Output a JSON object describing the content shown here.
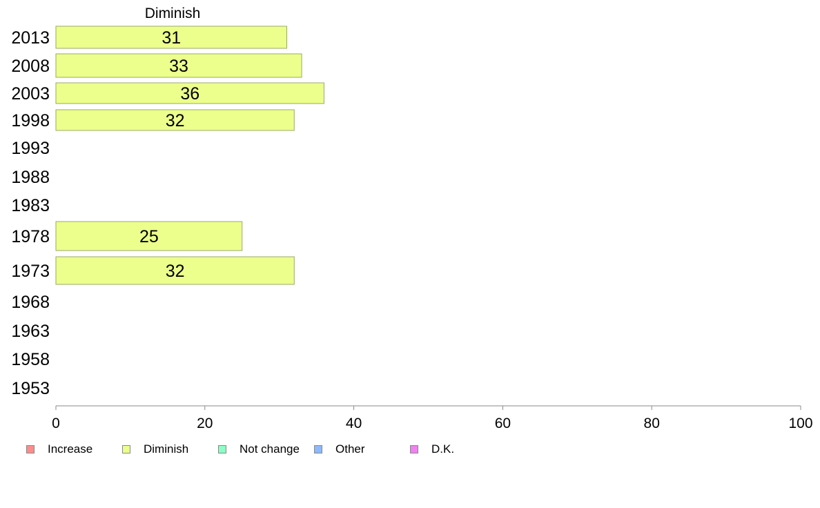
{
  "chart_data": {
    "type": "bar",
    "orientation": "horizontal",
    "stacked": true,
    "title": "",
    "header_label": "Diminish",
    "categories": [
      "2013",
      "2008",
      "2003",
      "1998",
      "1993",
      "1988",
      "1983",
      "1978",
      "1973",
      "1968",
      "1963",
      "1958",
      "1953"
    ],
    "series": [
      {
        "name": "Increase",
        "color": "#ff8c8c",
        "values": [
          null,
          null,
          null,
          null,
          null,
          null,
          null,
          null,
          null,
          null,
          null,
          null,
          null
        ]
      },
      {
        "name": "Diminish",
        "color": "#ecff8c",
        "values": [
          31,
          33,
          36,
          32,
          null,
          null,
          null,
          25,
          32,
          null,
          null,
          null,
          null
        ]
      },
      {
        "name": "Not change",
        "color": "#8cffc6",
        "values": [
          null,
          null,
          null,
          null,
          null,
          null,
          null,
          null,
          null,
          null,
          null,
          null,
          null
        ]
      },
      {
        "name": "Other",
        "color": "#8cb9ff",
        "values": [
          null,
          null,
          null,
          null,
          null,
          null,
          null,
          null,
          null,
          null,
          null,
          null,
          null
        ]
      },
      {
        "name": "D.K.",
        "color": "#ee82ee",
        "values": [
          null,
          null,
          null,
          null,
          null,
          null,
          null,
          null,
          null,
          null,
          null,
          null,
          null
        ]
      }
    ],
    "xlim": [
      0,
      100
    ],
    "xticks": [
      "0",
      "20",
      "40",
      "60",
      "80",
      "100"
    ],
    "grid": false,
    "legend_position": "bottom-left"
  }
}
